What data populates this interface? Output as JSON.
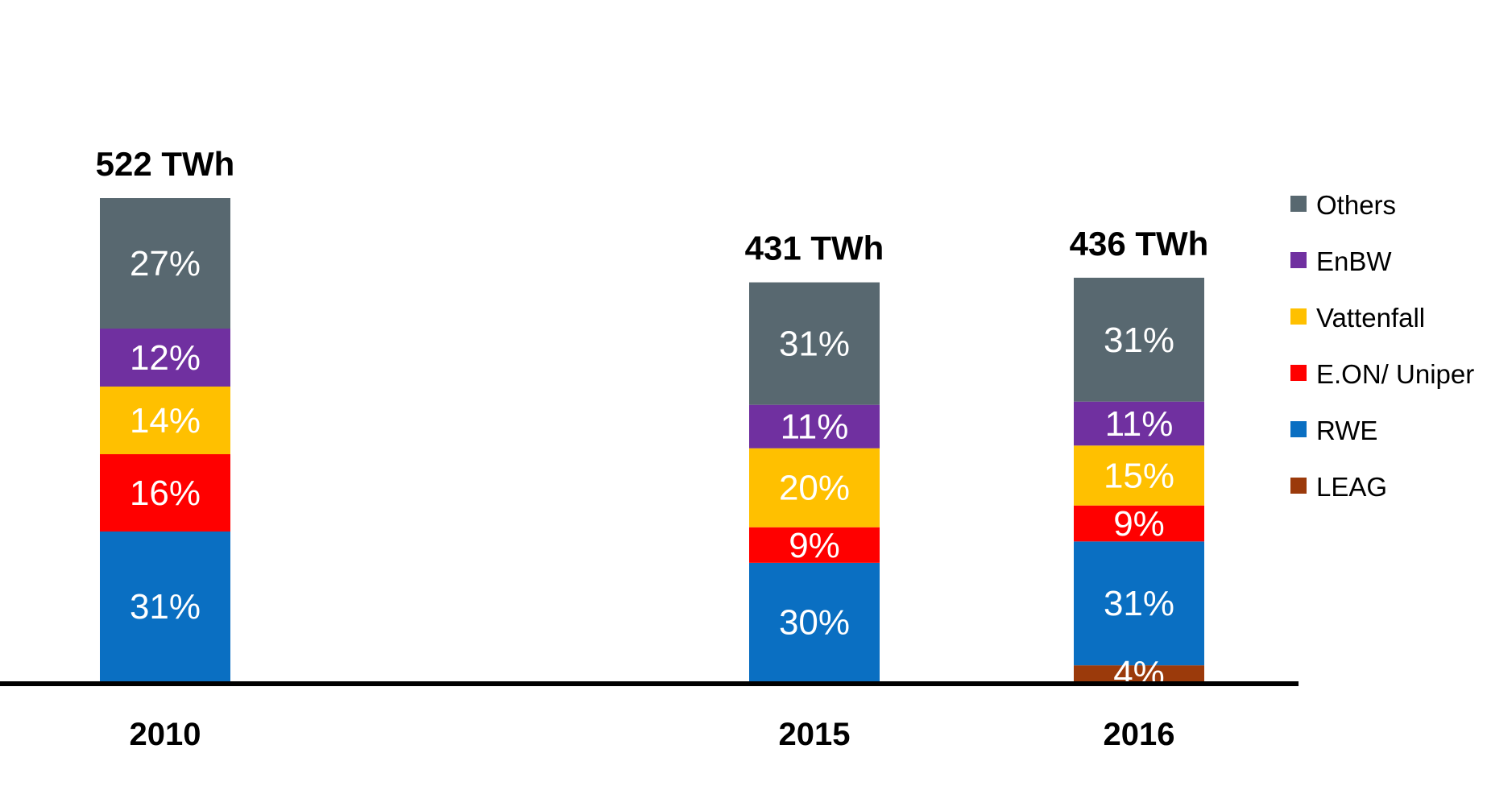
{
  "chart_data": {
    "type": "bar",
    "stacked": true,
    "percent_stacked": true,
    "categories": [
      "2010",
      "2015",
      "2016"
    ],
    "totals": [
      "522 TWh",
      "431 TWh",
      "436 TWh"
    ],
    "series": [
      {
        "name": "LEAG",
        "color": "#9b3a0b",
        "values": [
          0,
          0,
          4
        ],
        "labels": [
          "",
          "",
          "4%"
        ]
      },
      {
        "name": "RWE",
        "color": "#0a6fc2",
        "values": [
          31,
          30,
          31
        ],
        "labels": [
          "31%",
          "30%",
          "31%"
        ]
      },
      {
        "name": "E.ON/ Uniper",
        "color": "#ff0000",
        "values": [
          16,
          9,
          9
        ],
        "labels": [
          "16%",
          "9%",
          "9%"
        ]
      },
      {
        "name": "Vattenfall",
        "color": "#ffc000",
        "values": [
          14,
          20,
          15
        ],
        "labels": [
          "14%",
          "20%",
          "15%"
        ]
      },
      {
        "name": "EnBW",
        "color": "#7030a0",
        "values": [
          12,
          11,
          11
        ],
        "labels": [
          "12%",
          "11%",
          "11%"
        ]
      },
      {
        "name": "Others",
        "color": "#586870",
        "values": [
          27,
          31,
          31
        ],
        "labels": [
          "27%",
          "31%",
          "31%"
        ]
      }
    ],
    "legend": {
      "position": "right",
      "order": [
        "Others",
        "EnBW",
        "Vattenfall",
        "E.ON/ Uniper",
        "RWE",
        "LEAG"
      ]
    },
    "grid": false,
    "ylim": [
      0,
      100
    ]
  }
}
